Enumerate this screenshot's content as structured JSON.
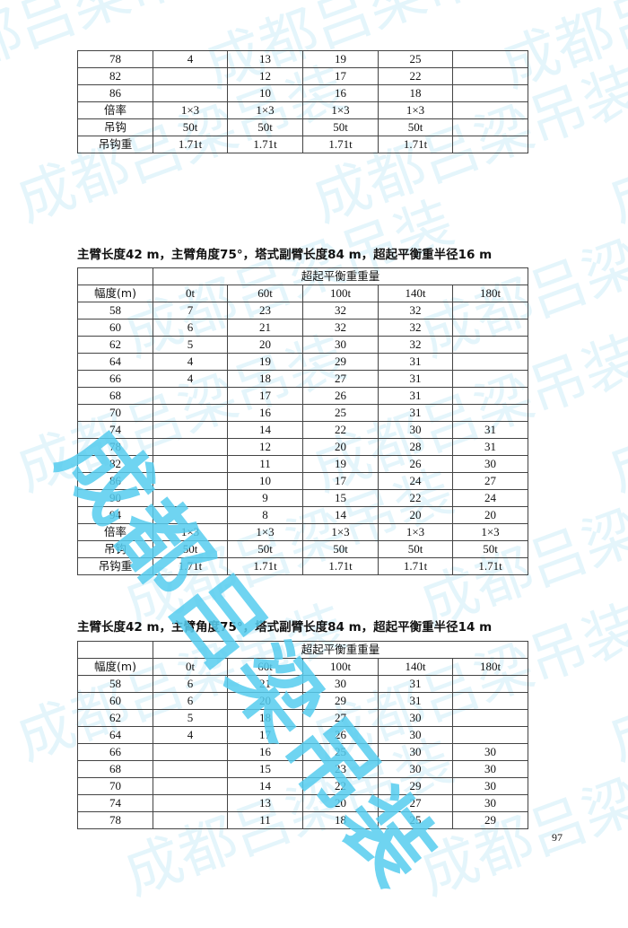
{
  "watermark": "成都吕梁吊装",
  "columns": [
    "0t",
    "60t",
    "100t",
    "140t",
    "180t"
  ],
  "group_header": "超起平衡重重量",
  "row_header": "幅度(m)",
  "tables": [
    {
      "title": "",
      "show_header": false,
      "rows": [
        [
          "78",
          "4",
          "13",
          "19",
          "25",
          ""
        ],
        [
          "82",
          "",
          "12",
          "17",
          "22",
          ""
        ],
        [
          "86",
          "",
          "10",
          "16",
          "18",
          ""
        ],
        [
          "倍率",
          "1×3",
          "1×3",
          "1×3",
          "1×3",
          ""
        ],
        [
          "吊钩",
          "50t",
          "50t",
          "50t",
          "50t",
          ""
        ],
        [
          "吊钩重",
          "1.71t",
          "1.71t",
          "1.71t",
          "1.71t",
          ""
        ]
      ]
    },
    {
      "title": "主臂长度42 m，主臂角度75°，塔式副臂长度84 m，超起平衡重半径16 m",
      "show_header": true,
      "rows": [
        [
          "58",
          "7",
          "23",
          "32",
          "32",
          ""
        ],
        [
          "60",
          "6",
          "21",
          "32",
          "32",
          ""
        ],
        [
          "62",
          "5",
          "20",
          "30",
          "32",
          ""
        ],
        [
          "64",
          "4",
          "19",
          "29",
          "31",
          ""
        ],
        [
          "66",
          "4",
          "18",
          "27",
          "31",
          ""
        ],
        [
          "68",
          "",
          "17",
          "26",
          "31",
          ""
        ],
        [
          "70",
          "",
          "16",
          "25",
          "31",
          ""
        ],
        [
          "74",
          "",
          "14",
          "22",
          "30",
          "31"
        ],
        [
          "78",
          "",
          "12",
          "20",
          "28",
          "31"
        ],
        [
          "82",
          "",
          "11",
          "19",
          "26",
          "30"
        ],
        [
          "86",
          "",
          "10",
          "17",
          "24",
          "27"
        ],
        [
          "90",
          "",
          "9",
          "15",
          "22",
          "24"
        ],
        [
          "94",
          "",
          "8",
          "14",
          "20",
          "20"
        ],
        [
          "倍率",
          "1×3",
          "1×3",
          "1×3",
          "1×3",
          "1×3"
        ],
        [
          "吊钩",
          "50t",
          "50t",
          "50t",
          "50t",
          "50t"
        ],
        [
          "吊钩重",
          "1.71t",
          "1.71t",
          "1.71t",
          "1.71t",
          "1.71t"
        ]
      ]
    },
    {
      "title": "主臂长度42 m，主臂角度75°，塔式副臂长度84 m，超起平衡重半径14 m",
      "show_header": true,
      "rows": [
        [
          "58",
          "6",
          "21",
          "30",
          "31",
          ""
        ],
        [
          "60",
          "6",
          "20",
          "29",
          "31",
          ""
        ],
        [
          "62",
          "5",
          "18",
          "27",
          "30",
          ""
        ],
        [
          "64",
          "4",
          "17",
          "26",
          "30",
          ""
        ],
        [
          "66",
          "",
          "16",
          "25",
          "30",
          "30"
        ],
        [
          "68",
          "",
          "15",
          "23",
          "30",
          "30"
        ],
        [
          "70",
          "",
          "14",
          "22",
          "29",
          "30"
        ],
        [
          "74",
          "",
          "13",
          "20",
          "27",
          "30"
        ],
        [
          "78",
          "",
          "11",
          "18",
          "25",
          "29"
        ]
      ]
    }
  ],
  "page_number": "97"
}
